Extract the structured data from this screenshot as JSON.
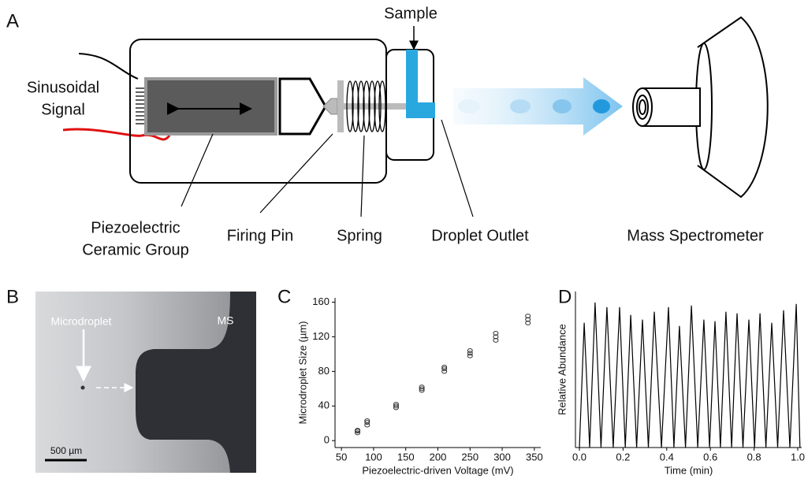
{
  "panels": [
    "A",
    "B",
    "C",
    "D"
  ],
  "diagram": {
    "sample": "Sample",
    "signal": [
      "Sinusoidal",
      "Signal"
    ],
    "piezo": [
      "Piezoelectric",
      "Ceramic Group"
    ],
    "firing_pin": "Firing Pin",
    "spring": "Spring",
    "outlet": "Droplet Outlet",
    "ms": "Mass Spectrometer"
  },
  "photo": {
    "droplet": "Microdroplet",
    "ms": "MS",
    "scale": "500 µm"
  },
  "chart_data": [
    {
      "type": "scatter",
      "x_label": "Piezoelectric-driven Voltage (mV)",
      "y_label": "Microdroplet Size (µm)",
      "series": [
        {
          "color": "#333333",
          "x": [
            75,
            75,
            75,
            90,
            90,
            90,
            135,
            135,
            135,
            175,
            175,
            175,
            210,
            210,
            210,
            250,
            250,
            250,
            290,
            290,
            290,
            340,
            340,
            340
          ],
          "values": [
            9,
            11,
            12,
            18,
            21,
            23,
            38,
            40,
            42,
            58,
            60,
            62,
            80,
            83,
            85,
            98,
            101,
            104,
            116,
            120,
            124,
            136,
            140,
            144
          ]
        }
      ],
      "xlim": [
        40,
        360
      ],
      "xticks": [
        50,
        100,
        150,
        200,
        250,
        300,
        350
      ],
      "ylim": [
        -8,
        165
      ],
      "yticks": [
        0,
        40,
        80,
        120,
        160
      ]
    },
    {
      "type": "line",
      "x_label": "Time (min)",
      "y_label": "Relative Abundance",
      "color": "#000000",
      "x": [
        0,
        0.022,
        0.047,
        0.072,
        0.099,
        0.126,
        0.155,
        0.184,
        0.21,
        0.235,
        0.262,
        0.289,
        0.316,
        0.343,
        0.376,
        0.408,
        0.433,
        0.458,
        0.486,
        0.513,
        0.542,
        0.57,
        0.596,
        0.621,
        0.646,
        0.671,
        0.697,
        0.722,
        0.749,
        0.776,
        0.802,
        0.827,
        0.854,
        0.881,
        0.908,
        0.935,
        0.964,
        0.993,
        1.01
      ],
      "values": [
        0,
        80,
        0,
        93,
        0,
        90,
        0,
        90,
        0,
        85,
        0,
        82,
        0,
        87,
        0,
        90,
        0,
        78,
        0,
        91,
        0,
        82,
        0,
        81,
        0,
        87,
        0,
        86,
        0,
        82,
        0,
        86,
        0,
        80,
        0,
        88,
        0,
        92,
        0
      ],
      "xlim": [
        -0.018,
        1.018
      ],
      "xticks": [
        {
          "value": 0,
          "label": "0.0"
        },
        0.2,
        0.4,
        0.6,
        0.8,
        {
          "value": 1,
          "label": "1.0"
        }
      ],
      "ylim": [
        0,
        100
      ]
    }
  ]
}
